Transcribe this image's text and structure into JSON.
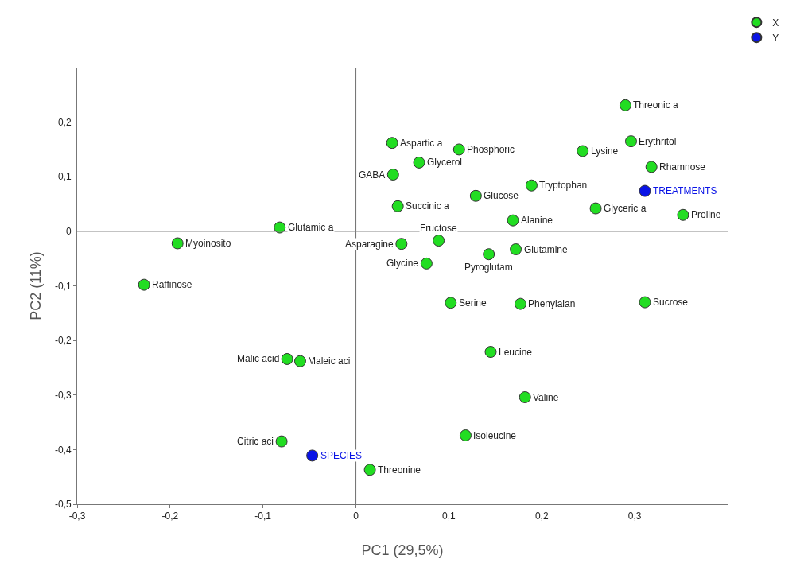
{
  "chart_data": {
    "type": "scatter",
    "xlabel": "PC1 (29,5%)",
    "ylabel": "PC2 (11%)",
    "xlim": [
      -0.3,
      0.4
    ],
    "ylim": [
      -0.5,
      0.3
    ],
    "xticks": [
      {
        "value": -0.3,
        "label": "-0,3"
      },
      {
        "value": -0.2,
        "label": "-0,2"
      },
      {
        "value": -0.1,
        "label": "-0,1"
      },
      0,
      {
        "value": 0.1,
        "label": "0,1"
      },
      {
        "value": 0.2,
        "label": "0,2"
      },
      {
        "value": 0.3,
        "label": "0,3"
      }
    ],
    "yticks": [
      {
        "value": -0.5,
        "label": "-0,5"
      },
      {
        "value": -0.4,
        "label": "-0,4"
      },
      {
        "value": -0.3,
        "label": "-0,3"
      },
      {
        "value": -0.2,
        "label": "-0,2"
      },
      {
        "value": -0.1,
        "label": "-0,1"
      },
      0,
      {
        "value": 0.1,
        "label": "0,1"
      },
      {
        "value": 0.2,
        "label": "0,2"
      }
    ],
    "grid": false,
    "legend": "top right",
    "marker": "circle",
    "ref_lines": [
      {
        "axis": "x",
        "value": 0
      },
      {
        "axis": "y",
        "value": 0
      }
    ],
    "series": [
      {
        "name": "X",
        "color": "#22dd22",
        "x": [
          0.29,
          0.296,
          0.244,
          0.318,
          0.258,
          0.352,
          0.189,
          0.129,
          0.169,
          0.039,
          0.111,
          0.068,
          0.04,
          0.045,
          -0.082,
          -0.192,
          0.089,
          0.049,
          0.172,
          0.143,
          0.076,
          -0.228,
          0.102,
          0.177,
          0.311,
          0.145,
          -0.074,
          -0.06,
          0.182,
          -0.08,
          0.118,
          0.015
        ],
        "values": [
          0.231,
          0.165,
          0.147,
          0.118,
          0.042,
          0.03,
          0.084,
          0.065,
          0.02,
          0.162,
          0.15,
          0.126,
          0.104,
          0.046,
          0.007,
          -0.022,
          -0.017,
          -0.023,
          -0.033,
          -0.042,
          -0.059,
          -0.098,
          -0.131,
          -0.133,
          -0.13,
          -0.221,
          -0.234,
          -0.238,
          -0.304,
          -0.385,
          -0.374,
          -0.437
        ]
      },
      {
        "name": "Y",
        "color": "#0a14e6",
        "x": [
          0.311,
          -0.047
        ],
        "values": [
          0.074,
          -0.411
        ]
      }
    ],
    "annotations": [
      {
        "text": "Threonic a",
        "x": 0.29,
        "y": 0.231
      },
      {
        "text": "Erythritol",
        "x": 0.296,
        "y": 0.165
      },
      {
        "text": "Lysine",
        "x": 0.244,
        "y": 0.147
      },
      {
        "text": "Rhamnose",
        "x": 0.318,
        "y": 0.118
      },
      {
        "text": "Glyceric a",
        "x": 0.258,
        "y": 0.042
      },
      {
        "text": "Proline",
        "x": 0.352,
        "y": 0.03
      },
      {
        "text": "Tryptophan",
        "x": 0.189,
        "y": 0.084
      },
      {
        "text": "Glucose",
        "x": 0.129,
        "y": 0.065
      },
      {
        "text": "Alanine",
        "x": 0.169,
        "y": 0.02
      },
      {
        "text": "Aspartic a",
        "x": 0.039,
        "y": 0.162
      },
      {
        "text": "Phosphoric",
        "x": 0.111,
        "y": 0.15
      },
      {
        "text": "Glycerol",
        "x": 0.068,
        "y": 0.126
      },
      {
        "text": "GABA",
        "x": 0.04,
        "y": 0.104
      },
      {
        "text": "Succinic a",
        "x": 0.045,
        "y": 0.046
      },
      {
        "text": "Glutamic a",
        "x": -0.082,
        "y": 0.007
      },
      {
        "text": "Myoinosito",
        "x": -0.192,
        "y": -0.022
      },
      {
        "text": "Fructose",
        "x": 0.089,
        "y": -0.017
      },
      {
        "text": "Asparagine",
        "x": 0.049,
        "y": -0.023
      },
      {
        "text": "Glutamine",
        "x": 0.172,
        "y": -0.033
      },
      {
        "text": "Pyroglutam",
        "x": 0.143,
        "y": -0.042
      },
      {
        "text": "Glycine",
        "x": 0.076,
        "y": -0.059
      },
      {
        "text": "Raffinose",
        "x": -0.228,
        "y": -0.098
      },
      {
        "text": "Serine",
        "x": 0.102,
        "y": -0.131
      },
      {
        "text": "Phenylalan",
        "x": 0.177,
        "y": -0.133
      },
      {
        "text": "Sucrose",
        "x": 0.311,
        "y": -0.13
      },
      {
        "text": "Leucine",
        "x": 0.145,
        "y": -0.221
      },
      {
        "text": "Malic acid",
        "x": -0.074,
        "y": -0.234
      },
      {
        "text": "Maleic aci",
        "x": -0.06,
        "y": -0.238
      },
      {
        "text": "Valine",
        "x": 0.182,
        "y": -0.304
      },
      {
        "text": "Citric aci",
        "x": -0.08,
        "y": -0.385
      },
      {
        "text": "Isoleucine",
        "x": 0.118,
        "y": -0.374
      },
      {
        "text": "Threonine",
        "x": 0.015,
        "y": -0.437
      },
      {
        "text": "TREATMENTS",
        "x": 0.311,
        "y": 0.074
      },
      {
        "text": "SPECIES",
        "x": -0.047,
        "y": -0.411
      }
    ]
  }
}
